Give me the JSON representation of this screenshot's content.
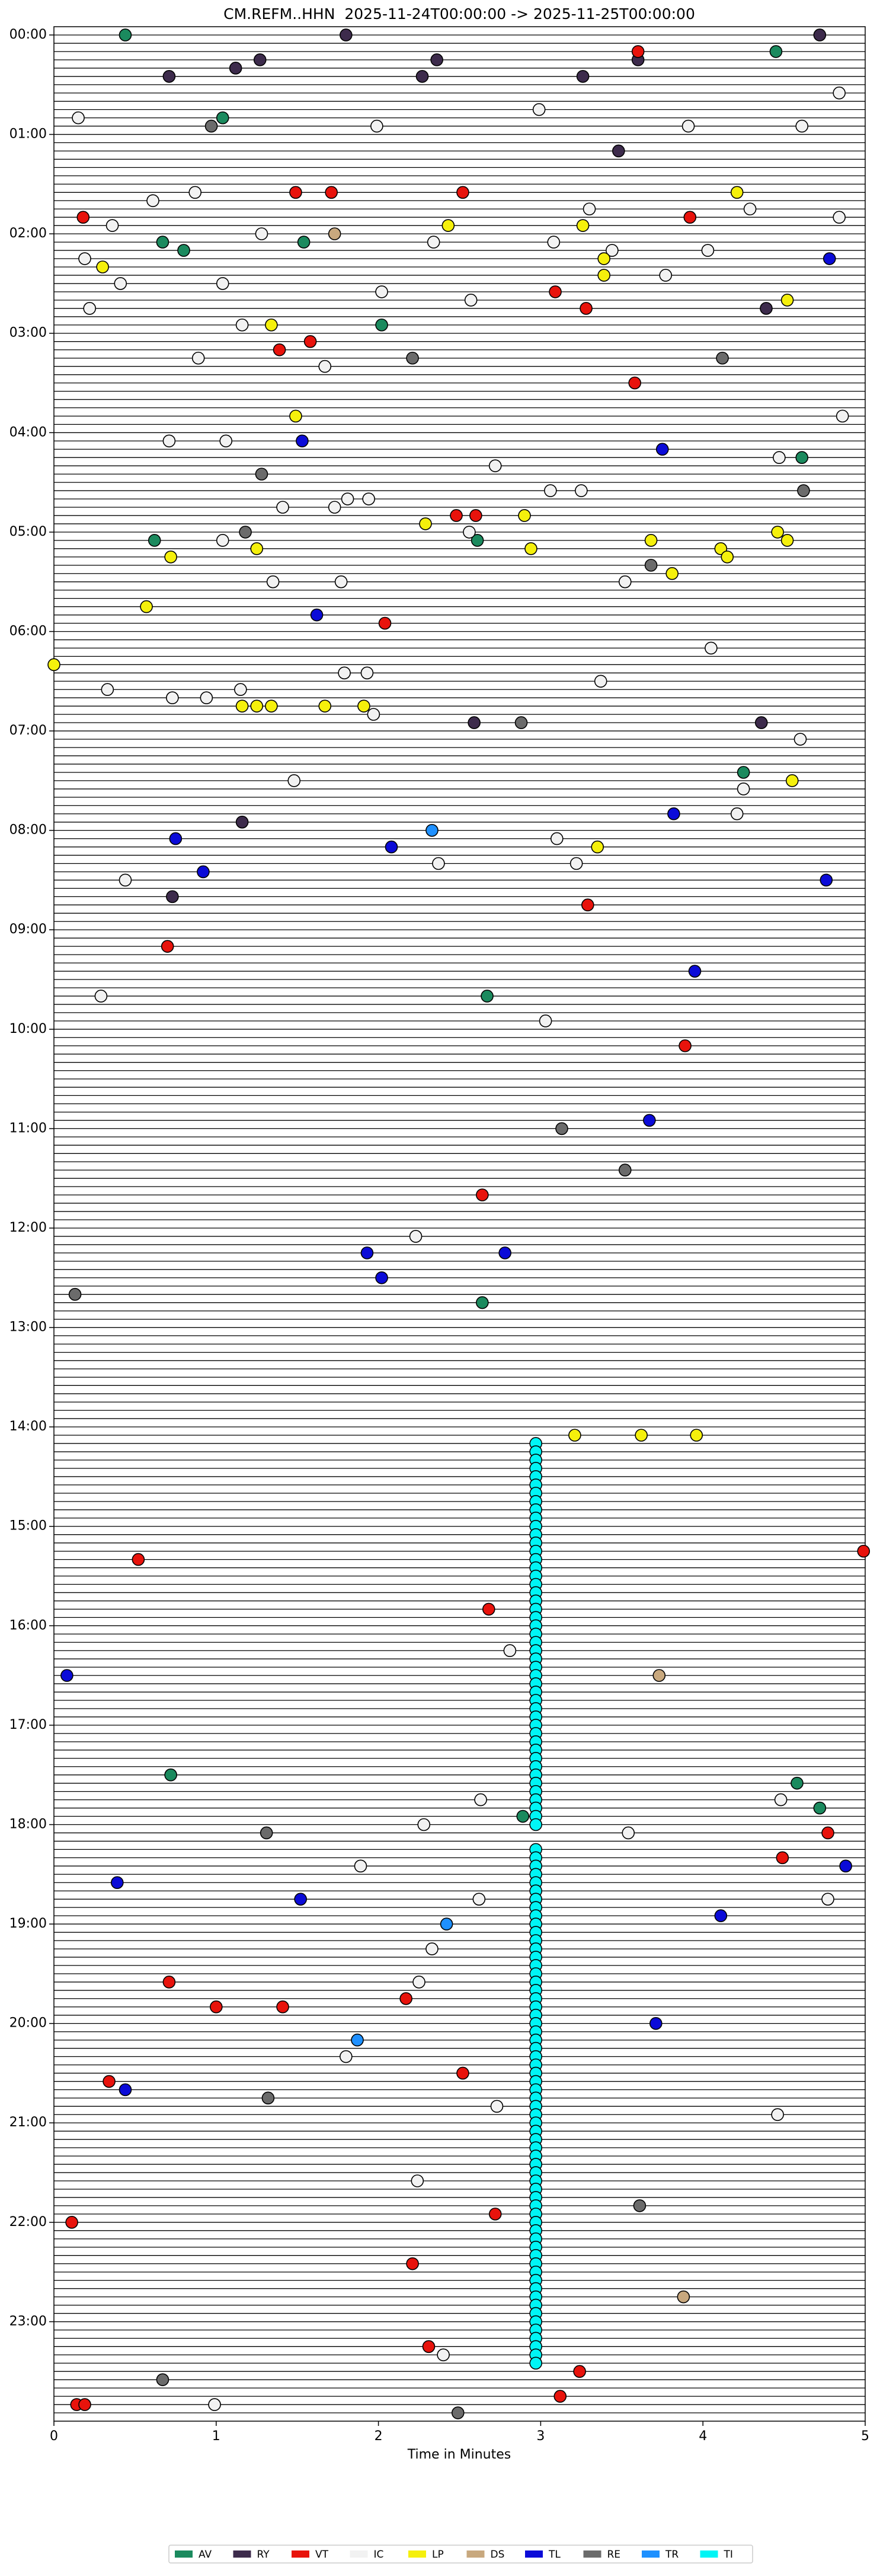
{
  "chart_data": {
    "type": "scatter",
    "title": "CM.REFM..HHN  2025-11-24T00:00:00 -> 2025-11-25T00:00:00",
    "x_label": "Time in Minutes",
    "xlim": [
      0,
      5
    ],
    "xticks": [
      0,
      1,
      2,
      3,
      4,
      5
    ],
    "ylim": [
      -5,
      1440
    ],
    "y_inverted": true,
    "yticks": [
      {
        "value": 0,
        "label": "00:00"
      },
      {
        "value": 60,
        "label": "01:00"
      },
      {
        "value": 120,
        "label": "02:00"
      },
      {
        "value": 180,
        "label": "03:00"
      },
      {
        "value": 240,
        "label": "04:00"
      },
      {
        "value": 300,
        "label": "05:00"
      },
      {
        "value": 360,
        "label": "06:00"
      },
      {
        "value": 420,
        "label": "07:00"
      },
      {
        "value": 480,
        "label": "08:00"
      },
      {
        "value": 540,
        "label": "09:00"
      },
      {
        "value": 600,
        "label": "10:00"
      },
      {
        "value": 660,
        "label": "11:00"
      },
      {
        "value": 720,
        "label": "12:00"
      },
      {
        "value": 780,
        "label": "13:00"
      },
      {
        "value": 840,
        "label": "14:00"
      },
      {
        "value": 900,
        "label": "15:00"
      },
      {
        "value": 960,
        "label": "16:00"
      },
      {
        "value": 1020,
        "label": "17:00"
      },
      {
        "value": 1080,
        "label": "18:00"
      },
      {
        "value": 1140,
        "label": "19:00"
      },
      {
        "value": 1200,
        "label": "20:00"
      },
      {
        "value": 1260,
        "label": "21:00"
      },
      {
        "value": 1320,
        "label": "22:00"
      },
      {
        "value": 1380,
        "label": "23:00"
      }
    ],
    "legend": "bottom",
    "series": [
      {
        "name": "AV",
        "color": "#1b8a5e",
        "x": [
          0.44,
          4.45,
          1.04,
          1.54,
          0.67,
          0.8,
          2.02,
          4.61,
          0.62,
          2.61,
          4.25,
          2.67,
          2.64,
          0.72,
          4.58,
          4.72,
          2.89
        ],
        "values": [
          0,
          10,
          50,
          125,
          125,
          130,
          175,
          255,
          305,
          305,
          445,
          580,
          765,
          1050,
          1055,
          1070,
          1075
        ]
      },
      {
        "name": "RY",
        "color": "#3d2b4c",
        "x": [
          1.8,
          4.72,
          2.36,
          1.27,
          1.12,
          0.71,
          2.27,
          3.26,
          3.6,
          3.48,
          4.39,
          2.59,
          4.36,
          1.16,
          0.73
        ],
        "values": [
          0,
          0,
          15,
          15,
          20,
          25,
          25,
          25,
          15,
          70,
          165,
          415,
          415,
          475,
          520
        ]
      },
      {
        "name": "VT",
        "color": "#e8130c",
        "x": [
          3.6,
          0.18,
          1.49,
          1.71,
          2.52,
          3.92,
          3.09,
          3.28,
          1.58,
          1.39,
          3.58,
          2.48,
          2.6,
          2.04,
          3.29,
          0.7,
          3.89,
          2.64,
          4.99,
          0.52,
          2.68,
          4.77,
          4.49,
          0.71,
          1.0,
          1.41,
          2.17,
          0.34,
          2.52,
          2.72,
          0.11,
          2.21,
          2.31,
          3.24,
          3.12,
          0.14,
          0.19
        ],
        "values": [
          10,
          110,
          95,
          95,
          95,
          110,
          155,
          165,
          185,
          190,
          210,
          290,
          290,
          355,
          525,
          550,
          610,
          700,
          915,
          920,
          950,
          1085,
          1100,
          1175,
          1190,
          1190,
          1185,
          1235,
          1230,
          1315,
          1320,
          1345,
          1395,
          1410,
          1425,
          1430,
          1430
        ]
      },
      {
        "name": "IC",
        "color": "#f2f2f2",
        "x": [
          4.84,
          2.99,
          0.15,
          1.99,
          3.91,
          4.61,
          0.87,
          0.61,
          4.29,
          3.3,
          0.36,
          4.84,
          1.28,
          2.34,
          3.08,
          3.44,
          0.19,
          4.03,
          3.77,
          0.41,
          1.04,
          2.02,
          2.57,
          0.22,
          1.16,
          0.89,
          1.67,
          4.86,
          0.71,
          1.06,
          4.47,
          2.72,
          3.06,
          3.25,
          1.81,
          1.94,
          1.73,
          1.41,
          1.04,
          2.56,
          1.35,
          1.77,
          3.52,
          4.05,
          1.79,
          1.93,
          0.33,
          3.37,
          0.73,
          0.94,
          1.15,
          1.97,
          4.6,
          1.48,
          4.25,
          4.21,
          3.1,
          2.37,
          3.22,
          0.44,
          0.29,
          3.03,
          2.23,
          1.89,
          2.28,
          2.63,
          2.81,
          3.54,
          4.48,
          2.62,
          4.77,
          2.33,
          2.25,
          1.8,
          2.73,
          4.46,
          2.24,
          2.4,
          0.99
        ],
        "values": [
          35,
          45,
          50,
          55,
          55,
          55,
          95,
          100,
          105,
          105,
          115,
          110,
          120,
          125,
          125,
          130,
          135,
          130,
          145,
          150,
          150,
          155,
          160,
          165,
          175,
          195,
          200,
          230,
          245,
          245,
          255,
          260,
          275,
          275,
          280,
          280,
          285,
          285,
          305,
          300,
          330,
          330,
          330,
          370,
          385,
          385,
          395,
          390,
          400,
          400,
          395,
          410,
          425,
          450,
          455,
          470,
          485,
          500,
          500,
          510,
          580,
          595,
          725,
          1105,
          1080,
          1065,
          975,
          1085,
          1065,
          1125,
          1125,
          1155,
          1175,
          1220,
          1250,
          1255,
          1295,
          1400,
          1430
        ]
      },
      {
        "name": "LP",
        "color": "#f5f00c",
        "x": [
          4.21,
          2.43,
          3.26,
          3.39,
          0.3,
          3.39,
          4.52,
          1.34,
          1.49,
          2.29,
          2.9,
          3.68,
          4.46,
          4.52,
          4.11,
          2.94,
          4.15,
          0.72,
          3.81,
          0.57,
          0.0,
          1.16,
          1.25,
          1.34,
          1.67,
          1.91,
          4.55,
          3.35,
          3.21,
          3.62,
          3.96,
          1.25
        ],
        "values": [
          95,
          115,
          115,
          135,
          140,
          145,
          160,
          175,
          230,
          295,
          290,
          305,
          300,
          305,
          310,
          310,
          315,
          315,
          325,
          345,
          380,
          405,
          405,
          405,
          405,
          405,
          450,
          490,
          845,
          845,
          845,
          310
        ]
      },
      {
        "name": "DS",
        "color": "#c8a87e",
        "x": [
          1.73,
          3.73,
          3.88
        ],
        "values": [
          120,
          990,
          1365
        ]
      },
      {
        "name": "TL",
        "color": "#0b0bd8",
        "x": [
          4.78,
          1.53,
          3.75,
          1.62,
          3.82,
          0.75,
          2.08,
          0.92,
          4.76,
          3.95,
          3.67,
          1.93,
          2.78,
          2.02,
          0.08,
          0.39,
          4.88,
          1.52,
          4.11,
          3.71,
          0.44
        ],
        "values": [
          135,
          245,
          250,
          350,
          470,
          485,
          490,
          505,
          510,
          565,
          655,
          735,
          735,
          750,
          990,
          1115,
          1105,
          1125,
          1135,
          1200,
          1240
        ]
      },
      {
        "name": "RE",
        "color": "#6b6b6b",
        "x": [
          0.97,
          2.21,
          4.12,
          1.28,
          4.62,
          1.18,
          3.68,
          2.88,
          3.13,
          3.52,
          0.13,
          1.31,
          1.32,
          3.61,
          2.49,
          0.67
        ],
        "values": [
          55,
          195,
          195,
          265,
          275,
          300,
          320,
          415,
          660,
          685,
          760,
          1085,
          1245,
          1310,
          1435,
          1415
        ]
      },
      {
        "name": "TR",
        "color": "#1e90ff",
        "x": [
          2.33,
          2.42,
          1.87
        ],
        "values": [
          480,
          1140,
          1210
        ]
      },
      {
        "name": "TI",
        "color": "#00f5f5",
        "x": [
          2.97,
          2.97,
          2.97,
          2.97,
          2.97,
          2.97,
          2.97,
          2.97,
          2.97,
          2.97,
          2.97,
          2.97,
          2.97,
          2.97,
          2.97,
          2.97,
          2.97,
          2.97,
          2.97,
          2.97,
          2.97,
          2.97,
          2.97,
          2.97,
          2.97,
          2.97,
          2.97,
          2.97,
          2.97,
          2.97,
          2.97,
          2.97,
          2.97,
          2.97,
          2.97,
          2.97,
          2.97,
          2.97,
          2.97,
          2.97,
          2.97,
          2.97,
          2.97,
          2.97,
          2.97,
          2.97,
          2.97,
          2.97,
          2.97,
          2.97,
          2.97,
          2.97,
          2.97,
          2.97,
          2.97,
          2.97,
          2.97,
          2.97,
          2.97,
          2.97,
          2.97,
          2.97,
          2.97,
          2.97,
          2.97,
          2.97,
          2.97,
          2.97,
          2.97,
          2.97,
          2.97,
          2.97,
          2.97,
          2.97,
          2.97,
          2.97,
          2.97,
          2.97,
          2.97,
          2.97,
          2.97,
          2.97,
          2.97,
          2.97,
          2.97,
          2.97,
          2.97,
          2.97,
          2.97,
          2.97,
          2.97,
          2.97,
          2.97,
          2.97,
          2.97,
          2.97,
          2.97,
          2.97,
          2.97,
          2.97,
          2.97,
          2.97,
          2.97,
          2.97,
          2.97,
          2.97,
          2.97,
          2.97,
          2.97,
          2.97
        ],
        "values": [
          850,
          855,
          860,
          865,
          870,
          875,
          880,
          885,
          890,
          895,
          900,
          905,
          910,
          915,
          920,
          925,
          930,
          935,
          940,
          945,
          950,
          955,
          960,
          965,
          970,
          975,
          980,
          985,
          990,
          995,
          1000,
          1005,
          1010,
          1015,
          1020,
          1025,
          1030,
          1035,
          1040,
          1045,
          1050,
          1055,
          1060,
          1065,
          1070,
          1075,
          1080,
          1095,
          1100,
          1105,
          1110,
          1115,
          1120,
          1125,
          1130,
          1135,
          1140,
          1145,
          1150,
          1155,
          1160,
          1165,
          1170,
          1175,
          1180,
          1185,
          1190,
          1195,
          1200,
          1205,
          1210,
          1215,
          1220,
          1225,
          1230,
          1235,
          1240,
          1245,
          1250,
          1255,
          1260,
          1265,
          1270,
          1275,
          1280,
          1285,
          1290,
          1295,
          1300,
          1305,
          1310,
          1315,
          1320,
          1325,
          1330,
          1335,
          1340,
          1345,
          1350,
          1355,
          1360,
          1365,
          1370,
          1375,
          1380,
          1385,
          1390,
          1395,
          1400,
          1405
        ]
      }
    ]
  }
}
